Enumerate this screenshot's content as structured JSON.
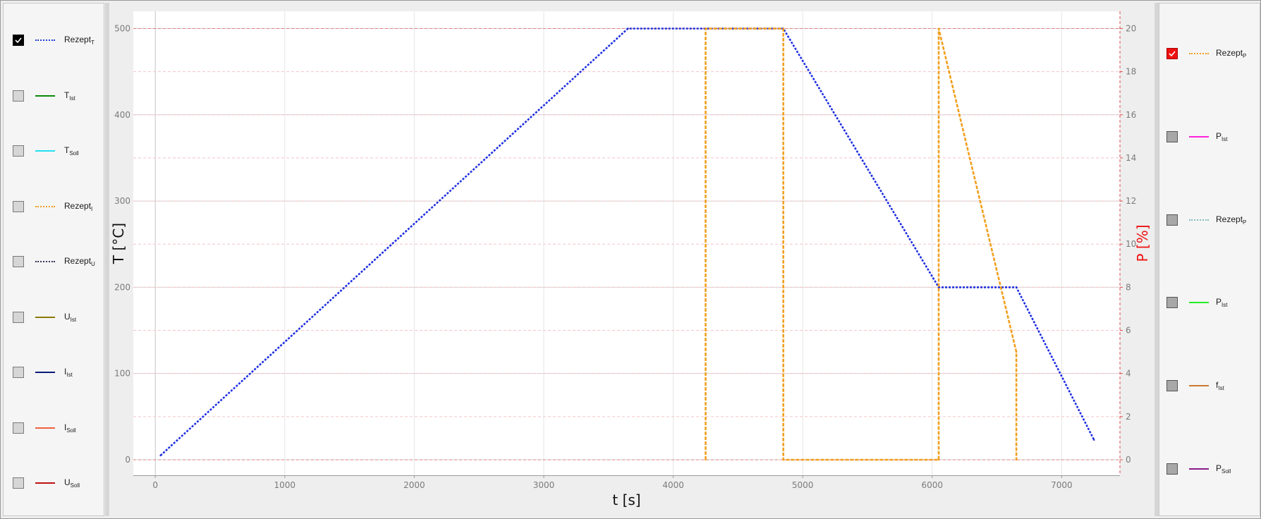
{
  "left_legend": [
    {
      "name": "Rezept",
      "sub": "T",
      "checked": true,
      "style": "dotted",
      "color": "#1f3fd6"
    },
    {
      "name": "T",
      "sub": "Ist",
      "checked": false,
      "style": "solid",
      "color": "#0a8a0a"
    },
    {
      "name": "T",
      "sub": "Soll",
      "checked": false,
      "style": "solid",
      "color": "#22e0f0"
    },
    {
      "name": "Rezept",
      "sub": "I",
      "checked": false,
      "style": "dotted",
      "color": "#f0a020"
    },
    {
      "name": "Rezept",
      "sub": "U",
      "checked": false,
      "style": "dotted",
      "color": "#333355"
    },
    {
      "name": "U",
      "sub": "Ist",
      "checked": false,
      "style": "solid",
      "color": "#8a7a00"
    },
    {
      "name": "I",
      "sub": "Ist",
      "checked": false,
      "style": "solid",
      "color": "#0a1a7a"
    },
    {
      "name": "I",
      "sub": "Soll",
      "checked": false,
      "style": "solid",
      "color": "#f06040"
    },
    {
      "name": "U",
      "sub": "Soll",
      "checked": false,
      "style": "solid",
      "color": "#c01010"
    }
  ],
  "right_legend": [
    {
      "name": "Rezept",
      "sub": "P",
      "checked": true,
      "style": "dotted",
      "color": "#f0a020"
    },
    {
      "name": "P",
      "sub": "Ist",
      "checked": false,
      "style": "solid",
      "color": "#ff22dd"
    },
    {
      "name": "Rezept",
      "sub": "P",
      "checked": false,
      "style": "dotted",
      "color": "#88bbbb"
    },
    {
      "name": "P",
      "sub": "Ist",
      "checked": false,
      "style": "solid",
      "color": "#22ee22"
    },
    {
      "name": "f",
      "sub": "Ist",
      "checked": false,
      "style": "solid",
      "color": "#c87a30"
    },
    {
      "name": "P",
      "sub": "Soll",
      "checked": false,
      "style": "solid",
      "color": "#8a1a8a"
    }
  ],
  "chart_data": {
    "type": "line",
    "xlabel": "t [s]",
    "ylabel": "T [°C]",
    "y2label": "P [%]",
    "xlim": [
      -170,
      7450
    ],
    "ylim": [
      -18,
      520
    ],
    "y2lim": [
      -0.72,
      20.8
    ],
    "xticks": [
      0,
      1000,
      2000,
      3000,
      4000,
      5000,
      6000,
      7000
    ],
    "yticks": [
      0,
      100,
      200,
      300,
      400,
      500
    ],
    "y2ticks": [
      0,
      2,
      4,
      6,
      8,
      10,
      12,
      14,
      16,
      18,
      20
    ],
    "grid": true,
    "series": [
      {
        "axis": "left",
        "color": "#1f2fe0",
        "style": "dotted",
        "x": [
          40,
          3650,
          4850,
          6050,
          6650,
          7250
        ],
        "y": [
          5,
          500,
          500,
          200,
          200,
          23
        ]
      },
      {
        "axis": "right",
        "color": "#f0a020",
        "style": "dashed",
        "x": [
          4250,
          4250,
          4850,
          4850,
          6050,
          6050,
          6650,
          6650
        ],
        "y": [
          0,
          20,
          20,
          0,
          0,
          20,
          5,
          0
        ]
      }
    ]
  }
}
